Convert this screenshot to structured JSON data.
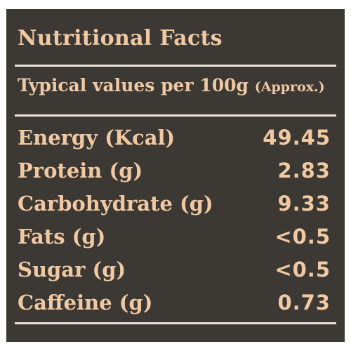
{
  "header": {
    "title": "Nutritional Facts"
  },
  "subheader": {
    "text": "Typical values per 100g",
    "note": "(Approx.)"
  },
  "nutrients": [
    {
      "label": "Energy (Kcal)",
      "value": "49.45"
    },
    {
      "label": "Protein (g)",
      "value": "2.83"
    },
    {
      "label": "Carbohydrate (g)",
      "value": "9.33"
    },
    {
      "label": "Fats (g)",
      "value": "<0.5"
    },
    {
      "label": "Sugar (g)",
      "value": "<0.5"
    },
    {
      "label": "Caffeine (g)",
      "value": "0.73"
    }
  ],
  "colors": {
    "background": "#3c3833",
    "text": "#f0c9a3",
    "rule": "#ece3da"
  }
}
